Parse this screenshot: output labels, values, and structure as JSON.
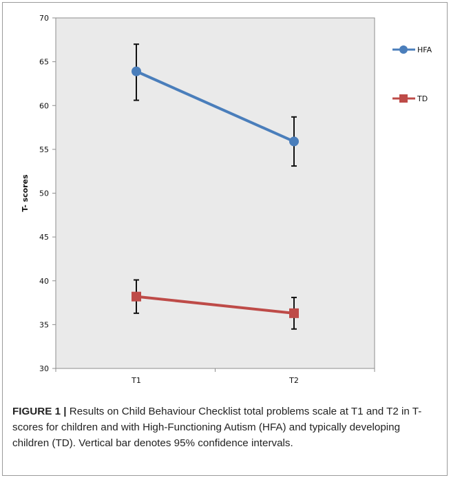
{
  "chart_data": {
    "type": "line",
    "title": "",
    "xlabel": "",
    "ylabel": "T- scores",
    "categories": [
      "T1",
      "T2"
    ],
    "ylim": [
      30,
      70
    ],
    "yticks": [
      30,
      35,
      40,
      45,
      50,
      55,
      60,
      65,
      70
    ],
    "grid": false,
    "legend_position": "right",
    "series": [
      {
        "name": "HFA",
        "values": [
          63.9,
          55.9
        ],
        "error_low": [
          60.6,
          53.1
        ],
        "error_high": [
          67.0,
          58.7
        ],
        "color": "#4a7ebb",
        "marker": "circle"
      },
      {
        "name": "TD",
        "values": [
          38.2,
          36.3
        ],
        "error_low": [
          36.3,
          34.5
        ],
        "error_high": [
          40.1,
          38.1
        ],
        "color": "#be4b48",
        "marker": "square"
      }
    ],
    "plot_background": "#eaeaea"
  },
  "caption": {
    "label": "FIGURE 1 |",
    "text": " Results on Child Behaviour Checklist total problems scale at T1 and T2 in T-scores for children and with High-Functioning Autism (HFA) and typically developing children (TD). Vertical bar denotes 95% confidence intervals."
  }
}
